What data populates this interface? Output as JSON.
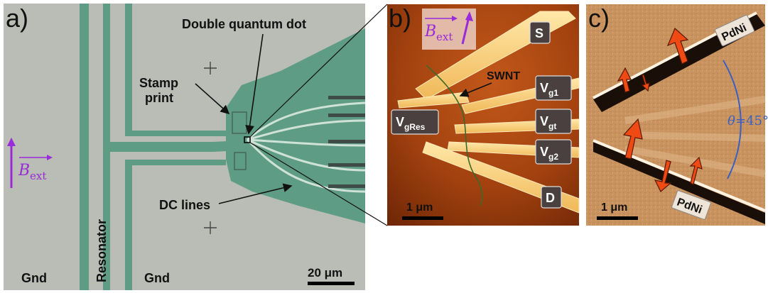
{
  "panel_a": {
    "letter": "a)",
    "label_dqd": "Double quantum dot",
    "label_stamp_1": "Stamp",
    "label_stamp_2": "print",
    "label_dc": "DC lines",
    "label_resonator": "Resonator",
    "label_gnd_left": "Gnd",
    "label_gnd_right": "Gnd",
    "scalebar": "20 μm",
    "field_symbol": "B",
    "field_sub": "ext"
  },
  "panel_b": {
    "letter": "b)",
    "field_symbol": "B",
    "field_sub": "ext",
    "label_swnt": "SWNT",
    "tag_s": "S",
    "tag_d": "D",
    "tag_vg1_main": "V",
    "tag_vg1_sub": "g1",
    "tag_vgt_main": "V",
    "tag_vgt_sub": "gt",
    "tag_vg2_main": "V",
    "tag_vg2_sub": "g2",
    "tag_vgres_main": "V",
    "tag_vgres_sub": "gRes",
    "scalebar": "1 μm"
  },
  "panel_c": {
    "letter": "c)",
    "tag_pdni_top": "PdNi",
    "tag_pdni_bottom": "PdNi",
    "angle_symbol": "θ",
    "angle_value": "=45°",
    "scalebar": "1 μm"
  },
  "colors": {
    "optical_bg": "#b9bdb6",
    "green_metal": "#5f9c85",
    "afm_dark": "#6e2606",
    "afm_mid": "#a7460f",
    "mfm_bg": "#c8935e",
    "field_arrow": "#9a2bd8",
    "moment_arrow": "#f04a14",
    "angle_arc": "#3b5fc2",
    "pdni_text": "#2f6fd6"
  }
}
